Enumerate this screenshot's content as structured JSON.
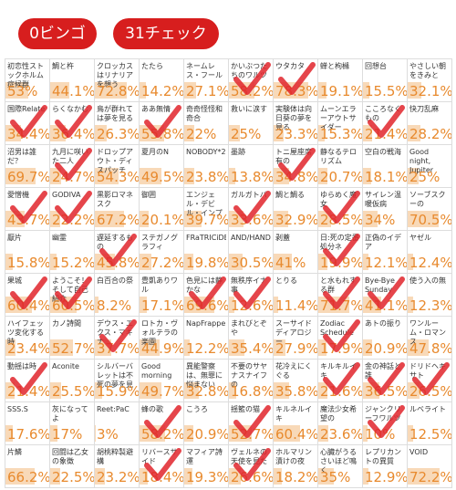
{
  "header": {
    "bingo": "0ビンゴ",
    "check": "31チェック"
  },
  "grid": {
    "cells": [
      {
        "title": "初恋性ストックホルム症候群",
        "rate": 53,
        "rate_label": "53%",
        "checked": false
      },
      {
        "title": "鯛と杵",
        "rate": 44.1,
        "rate_label": "44.1%",
        "checked": false
      },
      {
        "title": "クロッカスはリナリアを想う",
        "rate": 72.8,
        "rate_label": "72.8%",
        "checked": false
      },
      {
        "title": "たたら",
        "rate": 14.2,
        "rate_label": "14.2%",
        "checked": false
      },
      {
        "title": "ネームレス・フール",
        "rate": 27.1,
        "rate_label": "27.1%",
        "checked": false
      },
      {
        "title": "かいぶつたちのワルツ",
        "rate": 58.2,
        "rate_label": "58.2%",
        "checked": true
      },
      {
        "title": "ウタカタ",
        "rate": 78.3,
        "rate_label": "78.3%",
        "checked": true
      },
      {
        "title": "蝉と枸櫞",
        "rate": 19.1,
        "rate_label": "19.1%",
        "checked": false
      },
      {
        "title": "回想台",
        "rate": 15.5,
        "rate_label": "15.5%",
        "checked": false
      },
      {
        "title": "やさしい朝をきみと",
        "rate": 32.1,
        "rate_label": "32.1%",
        "checked": false
      },
      {
        "title": "国際Relate",
        "rate": 34.4,
        "rate_label": "34.4%",
        "checked": true
      },
      {
        "title": "らくなかむ",
        "rate": 36.4,
        "rate_label": "36.4%",
        "checked": true
      },
      {
        "title": "鳥が群れては夢を見る",
        "rate": 26.3,
        "rate_label": "26.3%",
        "checked": false
      },
      {
        "title": "ああ無情",
        "rate": 55.8,
        "rate_label": "55.8%",
        "checked": true
      },
      {
        "title": "奇奇怪怪和奇合",
        "rate": 22,
        "rate_label": "22%",
        "checked": false
      },
      {
        "title": "救いに涙す",
        "rate": 25,
        "rate_label": "25%",
        "checked": false
      },
      {
        "title": "実験体は向日葵の夢を見る",
        "rate": 23.3,
        "rate_label": "23.3%",
        "checked": false
      },
      {
        "title": "ムーンエラーアウトサイダー",
        "rate": 15.3,
        "rate_label": "15.3%",
        "checked": false
      },
      {
        "title": "こころなくもの",
        "rate": 21.4,
        "rate_label": "21.4%",
        "checked": true
      },
      {
        "title": "快刀乱麻",
        "rate": 28.2,
        "rate_label": "28.2%",
        "checked": false
      },
      {
        "title": "沼男は誰だ？",
        "rate": 69.7,
        "rate_label": "69.7%",
        "checked": false
      },
      {
        "title": "九月に咲いた二人",
        "rate": 24.7,
        "rate_label": "24.7%",
        "checked": true
      },
      {
        "title": "ドロップアウト・ディスパッチ",
        "rate": 54.3,
        "rate_label": "54.3%",
        "checked": false
      },
      {
        "title": "夏月のN",
        "rate": 49.5,
        "rate_label": "49.5%",
        "checked": false
      },
      {
        "title": "NOBODY*2",
        "rate": 23.8,
        "rate_label": "23.8%",
        "checked": false
      },
      {
        "title": "墨跡",
        "rate": 13.8,
        "rate_label": "13.8%",
        "checked": false
      },
      {
        "title": "トニ屋座席有の",
        "rate": 34.8,
        "rate_label": "34.8%",
        "checked": true
      },
      {
        "title": "静なるテロリズム",
        "rate": 20.7,
        "rate_label": "20.7%",
        "checked": false
      },
      {
        "title": "空白の戦海",
        "rate": 18.1,
        "rate_label": "18.1%",
        "checked": false
      },
      {
        "title": "Good night, Jupiter",
        "rate": 25,
        "rate_label": "25%",
        "checked": false
      },
      {
        "title": "愛憎機",
        "rate": 43.7,
        "rate_label": "43.7%",
        "checked": true
      },
      {
        "title": "GODIVA",
        "rate": 22.2,
        "rate_label": "22.2%",
        "checked": true
      },
      {
        "title": "黒影ロマネスク",
        "rate": 67.2,
        "rate_label": "67.2%",
        "checked": false
      },
      {
        "title": "御囲",
        "rate": 20.1,
        "rate_label": "20.1%",
        "checked": false
      },
      {
        "title": "エンジェル・デビル・インプ",
        "rate": 39.7,
        "rate_label": "39.7%",
        "checked": false
      },
      {
        "title": "ガルガトバ",
        "rate": 33.6,
        "rate_label": "33.6%",
        "checked": true
      },
      {
        "title": "鯛と鯛る",
        "rate": 32.9,
        "rate_label": "32.9%",
        "checked": false
      },
      {
        "title": "ゆらめく魔女",
        "rate": 28.5,
        "rate_label": "28.5%",
        "checked": true
      },
      {
        "title": "サイレン温暖仮病",
        "rate": 34,
        "rate_label": "34%",
        "checked": false
      },
      {
        "title": "ソーブスクーの",
        "rate": 70.5,
        "rate_label": "70.5%",
        "checked": false
      },
      {
        "title": "厭片",
        "rate": 15.8,
        "rate_label": "15.8%",
        "checked": false
      },
      {
        "title": "幽霊",
        "rate": 15.2,
        "rate_label": "15.2%",
        "checked": false
      },
      {
        "title": "遅延するもの",
        "rate": 45.8,
        "rate_label": "45.8%",
        "checked": true
      },
      {
        "title": "ステガノグラフィ",
        "rate": 27.2,
        "rate_label": "27.2%",
        "checked": false
      },
      {
        "title": "FRaTRICiDE",
        "rate": 19.8,
        "rate_label": "19.8%",
        "checked": false
      },
      {
        "title": "AND/HAND",
        "rate": 30.5,
        "rate_label": "30.5%",
        "checked": false
      },
      {
        "title": "剥蓋",
        "rate": 41,
        "rate_label": "41%",
        "checked": false
      },
      {
        "title": "日:死の定番処分ネ",
        "rate": 19.9,
        "rate_label": "19.9%",
        "checked": true
      },
      {
        "title": "正偽のイデア",
        "rate": 12.1,
        "rate_label": "12.1%",
        "checked": false
      },
      {
        "title": "ヤゼル",
        "rate": 12.4,
        "rate_label": "12.4%",
        "checked": false
      },
      {
        "title": "果城",
        "rate": 60.4,
        "rate_label": "60.4%",
        "checked": true
      },
      {
        "title": "ようこそ！そして自己紹介",
        "rate": 60.5,
        "rate_label": "60.5%",
        "checked": true
      },
      {
        "title": "白百合の祭",
        "rate": 8.2,
        "rate_label": "8.2%",
        "checked": false
      },
      {
        "title": "豊凱ありワル",
        "rate": 17.1,
        "rate_label": "17.1%",
        "checked": false
      },
      {
        "title": "色見には静かな",
        "rate": 69.6,
        "rate_label": "69.6%",
        "checked": true
      },
      {
        "title": "無秩序イナ事",
        "rate": 12.6,
        "rate_label": "12.6%",
        "checked": true
      },
      {
        "title": "とりる",
        "rate": 11.4,
        "rate_label": "11.4%",
        "checked": false
      },
      {
        "title": "と水もれする群",
        "rate": 71.7,
        "rate_label": "71.7%",
        "checked": true
      },
      {
        "title": "Bye-Bye Sunday",
        "rate": 41.1,
        "rate_label": "41.1%",
        "checked": true
      },
      {
        "title": "使う入の無",
        "rate": 12.3,
        "rate_label": "12.3%",
        "checked": false
      },
      {
        "title": "ハイフェッツ変化する時",
        "rate": 23.4,
        "rate_label": "23.4%",
        "checked": false
      },
      {
        "title": "カノ詩間",
        "rate": 52.7,
        "rate_label": "52.7%",
        "checked": false
      },
      {
        "title": "デウス・エクス・マキナ",
        "rate": 37.7,
        "rate_label": "37.7%",
        "checked": true
      },
      {
        "title": "ロトカ・ヴォルテラの楽園",
        "rate": 44.9,
        "rate_label": "44.9%",
        "checked": false
      },
      {
        "title": "NapFrappe",
        "rate": 12.2,
        "rate_label": "12.2%",
        "checked": false
      },
      {
        "title": "まれびとぞや",
        "rate": 35.4,
        "rate_label": "35.4%",
        "checked": false
      },
      {
        "title": "スーサイドディアロジー",
        "rate": 27.9,
        "rate_label": "27.9%",
        "checked": false
      },
      {
        "title": "Zodiac Schedule",
        "rate": 17.9,
        "rate_label": "17.9%",
        "checked": true
      },
      {
        "title": "あトの振り",
        "rate": 20.9,
        "rate_label": "20.9%",
        "checked": false
      },
      {
        "title": "ワンルーム・ロマンス",
        "rate": 47.8,
        "rate_label": "47.8%",
        "checked": false
      },
      {
        "title": "動揺は時",
        "rate": 21.4,
        "rate_label": "21.4%",
        "checked": true
      },
      {
        "title": "Aconite",
        "rate": 25.5,
        "rate_label": "25.5%",
        "checked": false
      },
      {
        "title": "シルバーバレットは不死の夢を見る",
        "rate": 15.9,
        "rate_label": "15.9%",
        "checked": false
      },
      {
        "title": "Good morning",
        "rate": 49.7,
        "rate_label": "49.7%",
        "checked": false
      },
      {
        "title": "異能警察は、無罪に悩まない",
        "rate": 32.8,
        "rate_label": "32.8%",
        "checked": false
      },
      {
        "title": "不要のサヤナスナイフの",
        "rate": 16.8,
        "rate_label": "16.8%",
        "checked": false
      },
      {
        "title": "花冷えにくぐる",
        "rate": 35.8,
        "rate_label": "35.8%",
        "checked": false
      },
      {
        "title": "キルキルイキ",
        "rate": 21.6,
        "rate_label": "21.6%",
        "checked": true
      },
      {
        "title": "金の神話と誰",
        "rate": 36.5,
        "rate_label": "36.5%",
        "checked": true
      },
      {
        "title": "ドリドヘキサト",
        "rate": 26.5,
        "rate_label": "26.5%",
        "checked": true
      },
      {
        "title": "SSS.S",
        "rate": 17.6,
        "rate_label": "17.6%",
        "checked": false
      },
      {
        "title": "灰になってよ",
        "rate": 17,
        "rate_label": "17%",
        "checked": false
      },
      {
        "title": "Reet:PaC",
        "rate": 3,
        "rate_label": "3%",
        "checked": false
      },
      {
        "title": "蜂の歌",
        "rate": 58.2,
        "rate_label": "58.2%",
        "checked": true
      },
      {
        "title": "こうろ",
        "rate": 20.9,
        "rate_label": "20.9%",
        "checked": false
      },
      {
        "title": "揺籃の猫",
        "rate": 52.7,
        "rate_label": "52.7%",
        "checked": true
      },
      {
        "title": "キルネルイキ",
        "rate": 60.4,
        "rate_label": "60.4%",
        "checked": false
      },
      {
        "title": "魔法少女希望の",
        "rate": 23.6,
        "rate_label": "23.6%",
        "checked": false
      },
      {
        "title": "ジャンクリーフワルツ",
        "rate": 10,
        "rate_label": "10%",
        "checked": true
      },
      {
        "title": "ルベライト",
        "rate": 12.5,
        "rate_label": "12.5%",
        "checked": false
      },
      {
        "title": "片鱗",
        "rate": 66.2,
        "rate_label": "66.2%",
        "checked": false
      },
      {
        "title": "回闘は乙女の象徴",
        "rate": 22.5,
        "rate_label": "22.5%",
        "checked": false
      },
      {
        "title": "胡桃粋製避構",
        "rate": 23.2,
        "rate_label": "23.2%",
        "checked": false
      },
      {
        "title": "リバースサイド",
        "rate": 18.4,
        "rate_label": "18.4%",
        "checked": true
      },
      {
        "title": "マフィア詩運",
        "rate": 19.3,
        "rate_label": "19.3%",
        "checked": false
      },
      {
        "title": "ヴェルネの天使を見た",
        "rate": 26.6,
        "rate_label": "26.6%",
        "checked": true
      },
      {
        "title": "ホルマリン漬けの夜",
        "rate": 18.2,
        "rate_label": "18.2%",
        "checked": false
      },
      {
        "title": "心臓がうるさいほど鳴く",
        "rate": 35,
        "rate_label": "35%",
        "checked": false
      },
      {
        "title": "レプリカントの異質",
        "rate": 12.9,
        "rate_label": "12.9%",
        "checked": false
      },
      {
        "title": "VOID",
        "rate": 72.2,
        "rate_label": "72.2%",
        "checked": false
      }
    ]
  }
}
